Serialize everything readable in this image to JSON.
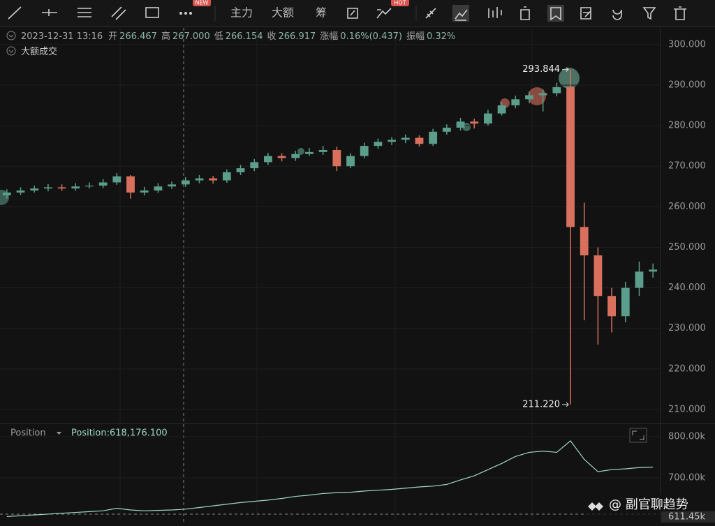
{
  "toolbar": {
    "items": [
      "主力",
      "大额",
      "筹"
    ],
    "badges": [
      "NEW",
      "HOT"
    ]
  },
  "watermark": "@ 副官聊趋势",
  "chart_data": [
    {
      "type": "candlestick",
      "info": {
        "time": "2023-12-31 13:16",
        "items": [
          [
            "开",
            "266.467"
          ],
          [
            "高",
            "267.000"
          ],
          [
            "低",
            "266.154"
          ],
          [
            "收",
            "266.917"
          ],
          [
            "涨幅",
            "0.16%(0.437)"
          ],
          [
            "振幅",
            "0.32%"
          ]
        ]
      },
      "legend": "大额成交",
      "up_color": "#5b9e8c",
      "down_color": "#d9705d",
      "open": [
        262.8,
        263.5,
        264,
        264.5,
        264.8,
        264.5,
        265,
        265.2,
        266,
        267.5,
        263.5,
        264,
        265,
        265.5,
        266.5,
        267,
        266.5,
        268.5,
        269.5,
        271,
        272.5,
        272,
        273,
        273.5,
        274,
        270,
        272.5,
        275,
        276,
        276.5,
        277,
        275.5,
        278.5,
        279.5,
        281,
        280.5,
        283,
        285,
        286.5,
        287.5,
        288,
        289.5,
        255,
        248,
        238,
        233,
        240,
        244
      ],
      "high": [
        264.3,
        264.8,
        265.2,
        265.6,
        265.5,
        265.8,
        266,
        266.8,
        268.3,
        267.8,
        264.9,
        265.8,
        266.2,
        267.3,
        267.8,
        267.6,
        269.2,
        270.3,
        271.8,
        273.3,
        273.2,
        273.8,
        274.5,
        275,
        274.8,
        273.2,
        275.8,
        276.8,
        277.2,
        277.8,
        277.6,
        279.2,
        280.3,
        281.9,
        281.7,
        283.9,
        285.8,
        287.4,
        288.4,
        288.9,
        290.6,
        293.844,
        261,
        250,
        240,
        241.5,
        246.5,
        246
      ],
      "low": [
        262,
        262.9,
        263.5,
        263.8,
        263.9,
        263.9,
        264.5,
        264.6,
        265.4,
        262,
        262.8,
        263.4,
        264.4,
        264.9,
        265.8,
        265.7,
        265.9,
        267.8,
        268.8,
        270.3,
        271.2,
        271.3,
        272.5,
        272.8,
        268.8,
        269.5,
        271.9,
        274.3,
        275.2,
        275.7,
        274.8,
        275,
        277.8,
        278.8,
        279.3,
        280,
        282.5,
        284.3,
        285.5,
        283.5,
        287.2,
        211.22,
        232,
        226,
        229,
        231.5,
        238,
        242.5
      ],
      "close": [
        263.5,
        264,
        264.5,
        264.8,
        264.5,
        265,
        265.2,
        266,
        267.5,
        263.5,
        264,
        265,
        265.5,
        266.5,
        267,
        266.5,
        268.5,
        269.5,
        271,
        272.5,
        272,
        273,
        273.5,
        274,
        270,
        272.5,
        275,
        276,
        276.5,
        277,
        275.5,
        278.5,
        279.5,
        281,
        280.5,
        283,
        285,
        286.5,
        287.5,
        288,
        289.5,
        255,
        248,
        238,
        233,
        240,
        244,
        244.5
      ],
      "annotations": [
        {
          "value": 293.844,
          "label": "293.844"
        },
        {
          "value": 211.22,
          "label": "211.220"
        }
      ],
      "ylim": [
        206.9,
        304.1
      ],
      "yticks": [
        {
          "value": 210,
          "label": "210.000"
        },
        {
          "value": 220,
          "label": "220.000"
        },
        {
          "value": 230,
          "label": "230.000"
        },
        {
          "value": 240,
          "label": "240.000"
        },
        {
          "value": 250,
          "label": "250.000"
        },
        {
          "value": 260,
          "label": "260.000"
        },
        {
          "value": 270,
          "label": "270.000"
        },
        {
          "value": 280,
          "label": "280.000"
        },
        {
          "value": 290,
          "label": "290.000"
        },
        {
          "value": 300,
          "label": "300.000"
        }
      ],
      "grid": true
    },
    {
      "type": "line",
      "series": [
        {
          "name": "Position",
          "color": "#9ed8c6",
          "values": [
            606000,
            608000,
            610000,
            612000,
            614000,
            616000,
            618000,
            620000,
            626000,
            622000,
            620000,
            621000,
            622000,
            624000,
            628000,
            632000,
            636000,
            640000,
            643000,
            646000,
            650000,
            655000,
            658000,
            662000,
            664000,
            665000,
            668000,
            670000,
            672000,
            675000,
            678000,
            680000,
            684000,
            695000,
            705000,
            720000,
            735000,
            752000,
            762000,
            765000,
            762000,
            790000,
            745000,
            715000,
            720000,
            722000,
            725000,
            726000
          ]
        }
      ],
      "readout": "Position:618,176.100",
      "current_label": "611.45k",
      "ylim": [
        598300,
        830500
      ],
      "yticks": [
        {
          "value": 700000,
          "label": "700.00k"
        },
        {
          "value": 800000,
          "label": "800.00k"
        }
      ],
      "grid": true
    }
  ]
}
